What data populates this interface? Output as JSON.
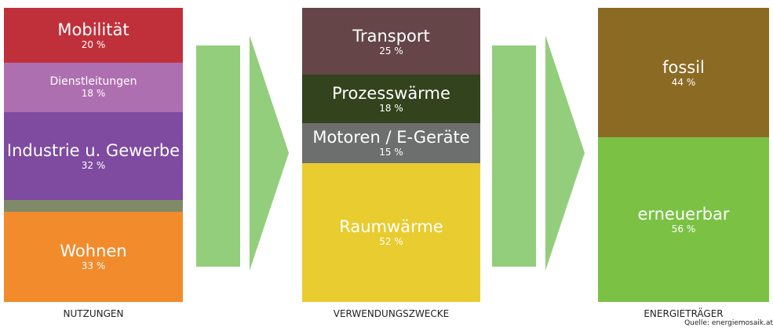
{
  "columns": [
    {
      "caption": "NUTZUNGEN",
      "segments": [
        {
          "label": "Mobilität",
          "value": 20,
          "value_label": "20 %",
          "color": "#c0303a"
        },
        {
          "label": "Dienstleitungen",
          "value": 18,
          "value_label": "18 %",
          "color": "#ae6fb0",
          "small": true
        },
        {
          "label": "Industrie u. Gewerbe",
          "value": 32,
          "value_label": "32 %",
          "color": "#7e4ba0"
        },
        {
          "label": "Wohnen",
          "value": 33,
          "value_label": "33 %",
          "color": "#f28b2c"
        }
      ]
    },
    {
      "caption": "VERWENDUNGSZWECKE",
      "segments": [
        {
          "label": "Transport",
          "value": 25,
          "value_label": "25 %",
          "color": "#654548"
        },
        {
          "label": "Prozesswärme",
          "value": 18,
          "value_label": "18 %",
          "color": "#33431d"
        },
        {
          "label": "Motoren / E-Geräte",
          "value": 15,
          "value_label": "15 %",
          "color": "#6d6e6e"
        },
        {
          "label": "Raumwärme",
          "value": 52,
          "value_label": "52 %",
          "color": "#e8cc30"
        }
      ]
    },
    {
      "caption": "ENERGIETRÄGER",
      "segments": [
        {
          "label": "fossil",
          "value": 44,
          "value_label": "44 %",
          "color": "#8b6a24"
        },
        {
          "label": "erneuerbar",
          "value": 56,
          "value_label": "56 %",
          "color": "#7bc244"
        }
      ]
    }
  ],
  "source": "Quelle: energiemosaik.at"
}
